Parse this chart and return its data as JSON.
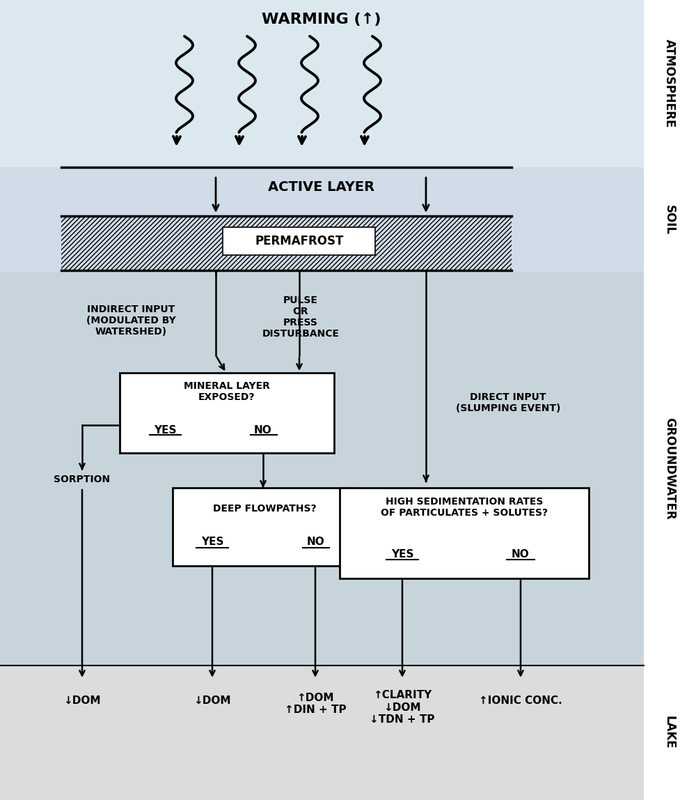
{
  "fig_width": 9.78,
  "fig_height": 11.48,
  "bg_atmosphere": "#dce8f0",
  "bg_soil": "#d0dce8",
  "bg_groundwater": "#c8d4dc",
  "bg_lake": "#dcdcdc",
  "label_atmosphere": "ATMOSPHERE",
  "label_soil": "SOIL",
  "label_groundwater": "GROUNDWATER",
  "label_lake": "LAKE",
  "warming_text": "WARMING (↑)",
  "active_layer_text": "ACTIVE LAYER",
  "permafrost_text": "PERMAFROST",
  "indirect_input_text": "INDIRECT INPUT\n(MODULATED BY\nWATERSHED)",
  "pulse_text": "PULSE\nOR\nPRESS\nDISTURBANCE",
  "direct_input_text": "DIRECT INPUT\n(SLUMPING EVENT)",
  "mineral_layer_text": "MINERAL LAYER\nEXPOSED?",
  "sorption_text": "SORPTION",
  "deep_flowpaths_text": "DEEP FLOWPATHS?",
  "high_sed_text": "HIGH SEDIMENTATION RATES\nOF PARTICULATES + SOLUTES?",
  "dom_down1": "↓DOM",
  "dom_down2": "↓DOM",
  "dom_up_din": "↑DOM\n↑DIN + TP",
  "clarity_dom_tdn": "↑CLARITY\n↓DOM\n↓TDN + TP",
  "ionic_conc": "↑IONIC CONC."
}
